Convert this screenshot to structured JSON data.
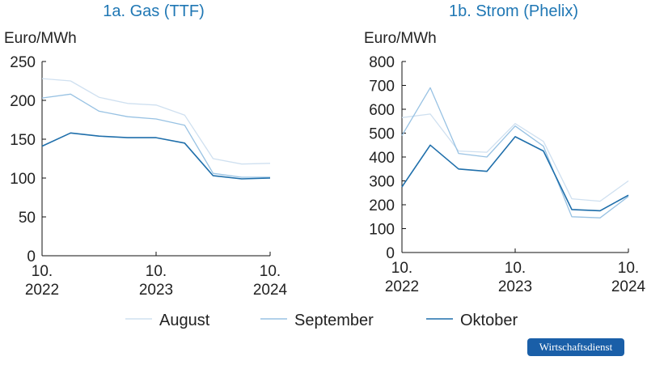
{
  "brand": "Wirtschaftsdienst",
  "legend": [
    {
      "name": "August",
      "color": "#cfe0f0"
    },
    {
      "name": "September",
      "color": "#98c2e3"
    },
    {
      "name": "Oktober",
      "color": "#1f6fab"
    }
  ],
  "chart_data": [
    {
      "type": "line",
      "title": "1a. Gas (TTF)",
      "ylabel": "Euro/MWh",
      "ylim": [
        0,
        250
      ],
      "yticks": [
        0,
        50,
        100,
        150,
        200,
        250
      ],
      "xlim": [
        0,
        24
      ],
      "xticks": [
        {
          "x": 0,
          "label": [
            "10.",
            "2022"
          ]
        },
        {
          "x": 12,
          "label": [
            "10.",
            "2023"
          ]
        },
        {
          "x": 24,
          "label": [
            "10.",
            "2024"
          ]
        }
      ],
      "x": [
        0,
        3,
        6,
        9,
        12,
        15,
        18,
        21,
        24
      ],
      "series": [
        {
          "name": "August",
          "values": [
            228,
            225,
            204,
            196,
            194,
            181,
            125,
            118,
            119
          ]
        },
        {
          "name": "September",
          "values": [
            203,
            208,
            186,
            179,
            176,
            168,
            106,
            101,
            101
          ]
        },
        {
          "name": "Oktober",
          "values": [
            141,
            158,
            154,
            152,
            152,
            145,
            103,
            99,
            100
          ]
        }
      ]
    },
    {
      "type": "line",
      "title": "1b. Strom (Phelix)",
      "ylabel": "Euro/MWh",
      "ylim": [
        0,
        800
      ],
      "yticks": [
        0,
        100,
        200,
        300,
        400,
        500,
        600,
        700,
        800
      ],
      "xlim": [
        0,
        24
      ],
      "xticks": [
        {
          "x": 0,
          "label": [
            "10.",
            "2022"
          ]
        },
        {
          "x": 12,
          "label": [
            "10.",
            "2023"
          ]
        },
        {
          "x": 24,
          "label": [
            "10.",
            "2024"
          ]
        }
      ],
      "x": [
        0,
        3,
        6,
        9,
        12,
        15,
        18,
        21,
        24
      ],
      "series": [
        {
          "name": "August",
          "values": [
            565,
            580,
            425,
            420,
            540,
            465,
            225,
            215,
            300
          ]
        },
        {
          "name": "September",
          "values": [
            490,
            690,
            415,
            400,
            530,
            445,
            150,
            145,
            235
          ]
        },
        {
          "name": "Oktober",
          "values": [
            275,
            450,
            350,
            340,
            485,
            425,
            180,
            175,
            240
          ]
        }
      ]
    }
  ]
}
